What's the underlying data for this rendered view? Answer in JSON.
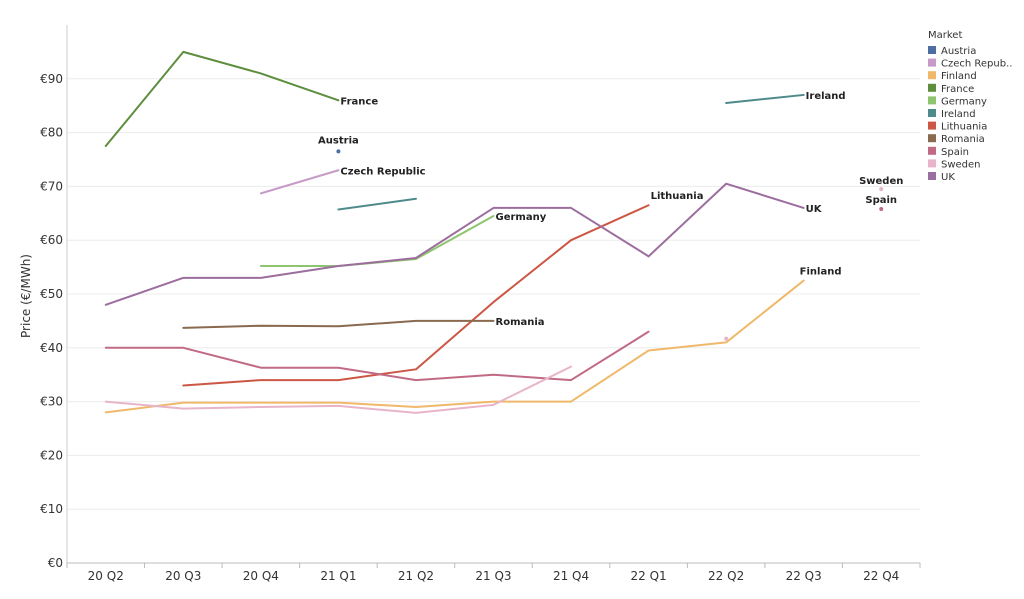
{
  "chart_data": {
    "type": "line",
    "title": "",
    "xlabel": "",
    "ylabel": "Price (€/MWh)",
    "ylim": [
      0,
      100
    ],
    "grid": true,
    "legend_placement": "top-right",
    "legend_title": "Market",
    "categories": [
      "20 Q2",
      "20 Q3",
      "20 Q4",
      "21 Q1",
      "21 Q2",
      "21 Q3",
      "21 Q4",
      "22 Q1",
      "22 Q2",
      "22 Q3",
      "22 Q4"
    ],
    "y_ticks": [
      {
        "value": 0,
        "label": "€0"
      },
      {
        "value": 10,
        "label": "€10"
      },
      {
        "value": 20,
        "label": "€20"
      },
      {
        "value": 30,
        "label": "€30"
      },
      {
        "value": 40,
        "label": "€40"
      },
      {
        "value": 50,
        "label": "€50"
      },
      {
        "value": 60,
        "label": "€60"
      },
      {
        "value": 70,
        "label": "€70"
      },
      {
        "value": 80,
        "label": "€80"
      },
      {
        "value": 90,
        "label": "€90"
      }
    ],
    "series": [
      {
        "name": "Austria",
        "legend_label": "Austria",
        "label": "Austria",
        "color": "#4e6da3",
        "values": [
          null,
          null,
          null,
          76.5,
          null,
          null,
          null,
          null,
          null,
          null,
          null
        ]
      },
      {
        "name": "Czech Republic",
        "legend_label": "Czech Repub..",
        "label": "Czech Republic",
        "color": "#c79bc7",
        "values": [
          null,
          null,
          68.7,
          73,
          null,
          null,
          null,
          null,
          null,
          null,
          null
        ]
      },
      {
        "name": "Finland",
        "legend_label": "Finland",
        "label": "Finland",
        "color": "#efb86b",
        "values": [
          28,
          29.8,
          29.8,
          29.8,
          29,
          30,
          30,
          39.5,
          41,
          52.5,
          null
        ]
      },
      {
        "name": "France",
        "legend_label": "France",
        "label": "France",
        "color": "#5d8e3e",
        "values": [
          77.5,
          95,
          91,
          86,
          null,
          null,
          null,
          null,
          null,
          null,
          null
        ]
      },
      {
        "name": "Germany",
        "legend_label": "Germany",
        "label": "Germany",
        "color": "#8ec46d",
        "values": [
          null,
          null,
          55.2,
          55.2,
          56.5,
          64.5,
          null,
          null,
          null,
          null,
          null
        ]
      },
      {
        "name": "Ireland",
        "legend_label": "Ireland",
        "label": "Ireland",
        "color": "#4f8a8b",
        "values": [
          null,
          null,
          null,
          65.7,
          67.7,
          null,
          null,
          null,
          85.5,
          87,
          null
        ]
      },
      {
        "name": "Lithuania",
        "legend_label": "Lithuania",
        "label": "Lithuania",
        "color": "#cc5745",
        "values": [
          null,
          33,
          34,
          34,
          36,
          48.5,
          60,
          66.5,
          null,
          null,
          null
        ]
      },
      {
        "name": "Romania",
        "legend_label": "Romania",
        "label": "Romania",
        "color": "#8a6a4f",
        "values": [
          null,
          43.7,
          44.1,
          44,
          45,
          45,
          null,
          null,
          null,
          null,
          null
        ]
      },
      {
        "name": "Spain",
        "legend_label": "Spain",
        "label": "Spain",
        "color": "#c06a83",
        "values": [
          40,
          40,
          36.3,
          36.3,
          34,
          35,
          34,
          43,
          null,
          null,
          65.8
        ]
      },
      {
        "name": "Sweden",
        "legend_label": "Sweden",
        "label": "Sweden",
        "color": "#e8b4c9",
        "values": [
          30,
          28.7,
          29,
          29.2,
          27.9,
          29.4,
          36.5,
          null,
          41.7,
          null,
          69.5
        ]
      },
      {
        "name": "UK",
        "legend_label": "UK",
        "label": "UK",
        "color": "#9c6e9e",
        "values": [
          48,
          53,
          53,
          55.2,
          56.7,
          66,
          66,
          57,
          70.5,
          66,
          null
        ]
      }
    ],
    "annotations": [
      {
        "text": "France",
        "series": "France",
        "category": "21 Q1",
        "value": 86
      },
      {
        "text": "Austria",
        "series": "Austria",
        "category": "21 Q1",
        "value": 76.5
      },
      {
        "text": "Czech Republic",
        "series": "Czech Republic",
        "category": "21 Q1",
        "value": 73
      },
      {
        "text": "Germany",
        "series": "Germany",
        "category": "21 Q3",
        "value": 64.5
      },
      {
        "text": "Romania",
        "series": "Romania",
        "category": "21 Q3",
        "value": 45
      },
      {
        "text": "Lithuania",
        "series": "Lithuania",
        "category": "22 Q1",
        "value": 66.5
      },
      {
        "text": "Ireland",
        "series": "Ireland",
        "category": "22 Q3",
        "value": 87
      },
      {
        "text": "UK",
        "series": "UK",
        "category": "22 Q3",
        "value": 66
      },
      {
        "text": "Finland",
        "series": "Finland",
        "category": "22 Q3",
        "value": 52.5
      },
      {
        "text": "Sweden",
        "series": "Sweden",
        "category": "22 Q4",
        "value": 69.5
      },
      {
        "text": "Spain",
        "series": "Spain",
        "category": "22 Q4",
        "value": 65.8
      }
    ]
  }
}
